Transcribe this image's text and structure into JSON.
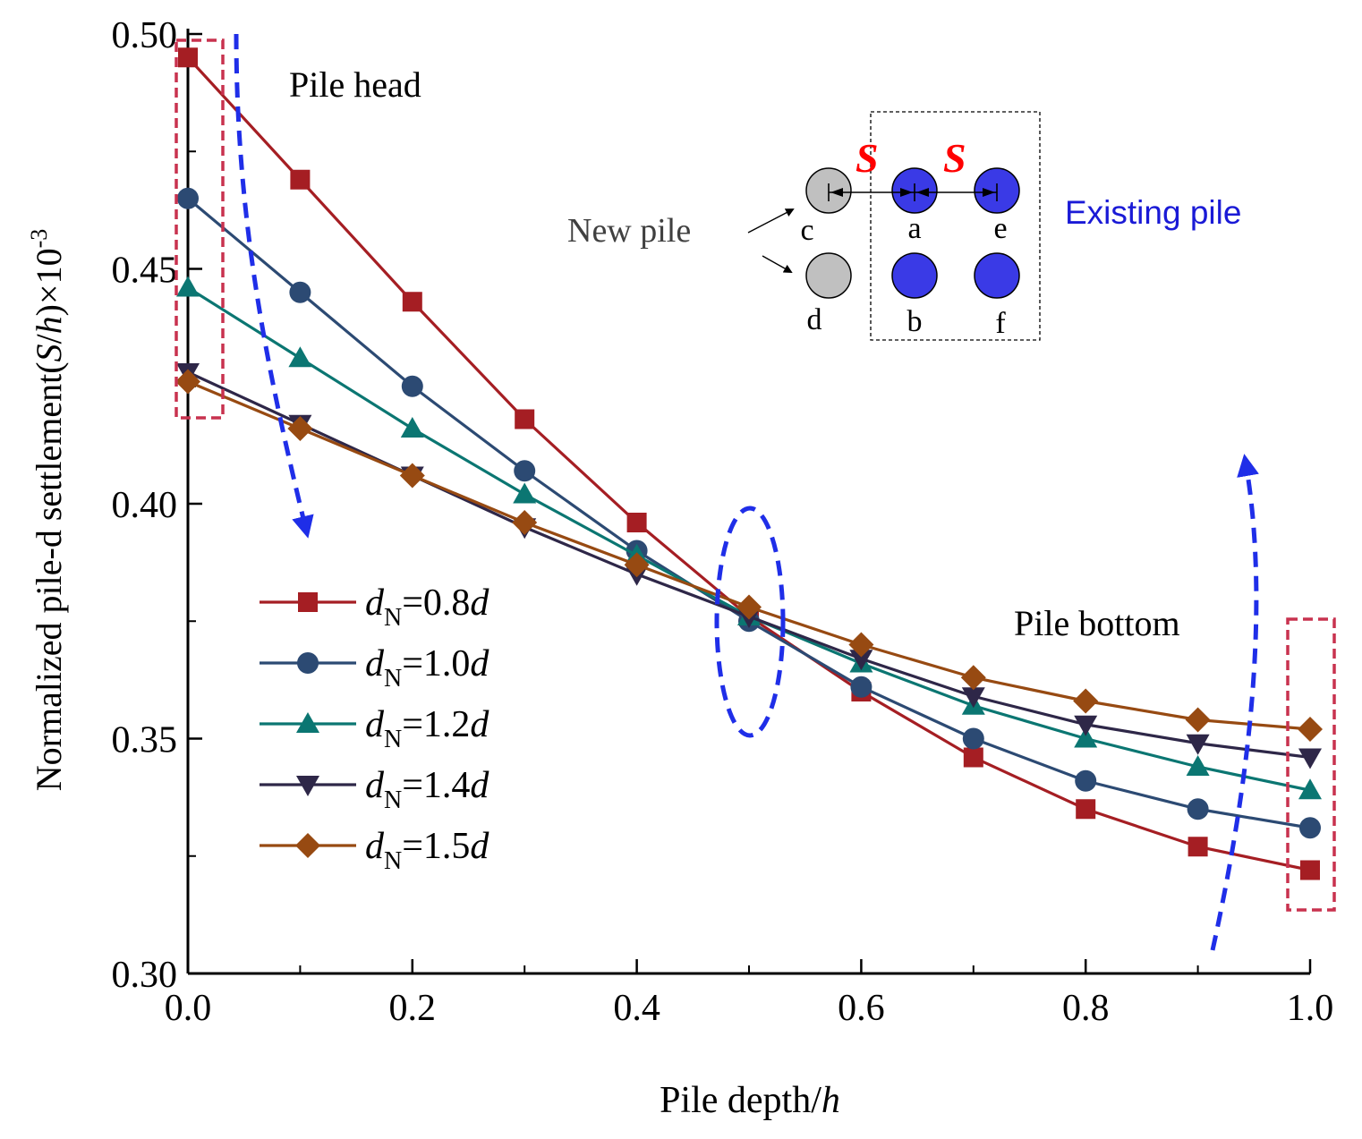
{
  "chart_data": {
    "type": "line",
    "xlabel": {
      "text": "Pile depth/",
      "ital": "h"
    },
    "ylabel": {
      "pre": "Normalized  pile-d settlement(",
      "ital1": "S",
      "mid": "/",
      "ital2": "h",
      "post": ")×10",
      "sup": "-3"
    },
    "xlim": [
      0.0,
      1.0
    ],
    "ylim": [
      0.3,
      0.5
    ],
    "xticks": [
      "0.0",
      "0.2",
      "0.4",
      "0.6",
      "0.8",
      "1.0"
    ],
    "yticks": [
      "0.30",
      "0.35",
      "0.40",
      "0.45",
      "0.50"
    ],
    "x": [
      0.0,
      0.1,
      0.2,
      0.3,
      0.4,
      0.5,
      0.6,
      0.7,
      0.8,
      0.9,
      1.0
    ],
    "series": [
      {
        "name": {
          "pre": "d",
          "sub": "N",
          "mid": "=0.8",
          "ital": "d"
        },
        "color": "#a51e23",
        "marker": "square",
        "values": [
          0.495,
          0.469,
          0.443,
          0.418,
          0.396,
          0.376,
          0.36,
          0.346,
          0.335,
          0.327,
          0.322
        ]
      },
      {
        "name": {
          "pre": "d",
          "sub": "N",
          "mid": "=1.0",
          "ital": "d"
        },
        "color": "#2c4a73",
        "marker": "circle",
        "values": [
          0.465,
          0.445,
          0.425,
          0.407,
          0.39,
          0.375,
          0.361,
          0.35,
          0.341,
          0.335,
          0.331
        ]
      },
      {
        "name": {
          "pre": "d",
          "sub": "N",
          "mid": "=1.2",
          "ital": "d"
        },
        "color": "#0b7672",
        "marker": "triangle-up",
        "values": [
          0.446,
          0.431,
          0.416,
          0.402,
          0.389,
          0.376,
          0.366,
          0.357,
          0.35,
          0.344,
          0.339
        ]
      },
      {
        "name": {
          "pre": "d",
          "sub": "N",
          "mid": "=1.4",
          "ital": "d"
        },
        "color": "#2e2748",
        "marker": "triangle-down",
        "values": [
          0.428,
          0.417,
          0.406,
          0.395,
          0.385,
          0.376,
          0.367,
          0.359,
          0.353,
          0.349,
          0.346
        ]
      },
      {
        "name": {
          "pre": "d",
          "sub": "N",
          "mid": "=1.5",
          "ital": "d"
        },
        "color": "#974a12",
        "marker": "diamond",
        "values": [
          0.426,
          0.416,
          0.406,
          0.396,
          0.387,
          0.378,
          0.37,
          0.363,
          0.358,
          0.354,
          0.352
        ]
      }
    ],
    "legend_position": "center-left",
    "annotations": {
      "pile_head": "Pile head",
      "pile_bottom": "Pile bottom",
      "new_pile": "New pile",
      "existing_pile": "Existing pile",
      "spacing": "S",
      "pile_labels": [
        "c",
        "a",
        "e",
        "d",
        "b",
        "f"
      ]
    },
    "colors": {
      "new_pile": "#c0c0c0",
      "existing_pile": "#3a3ae6",
      "highlight_box": "#c8324f",
      "arrow": "#1f2ee8",
      "spacing_label": "#ff0000",
      "existing_text": "#1a1ad6"
    }
  }
}
